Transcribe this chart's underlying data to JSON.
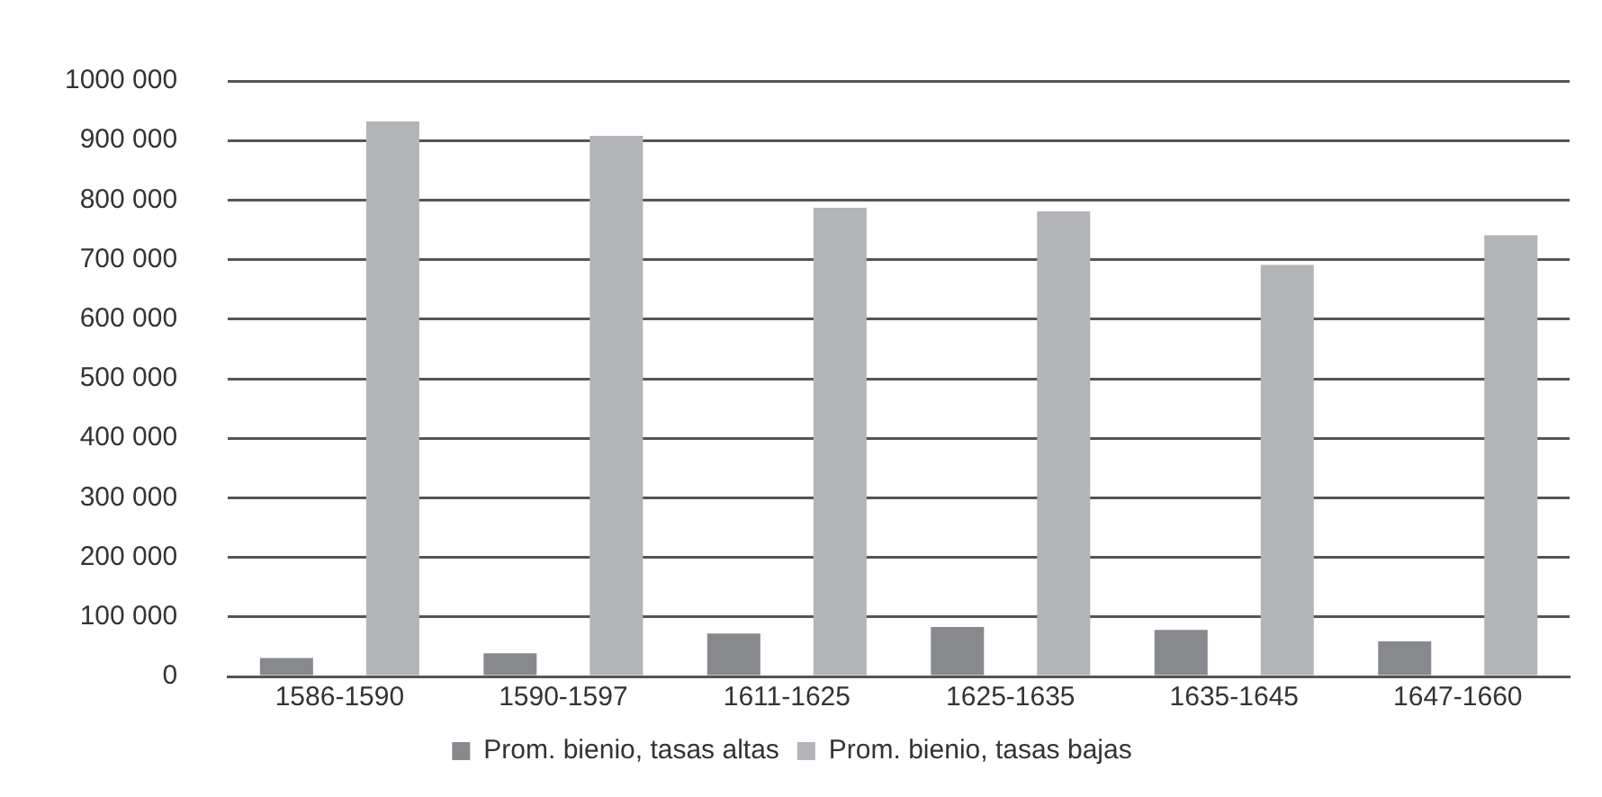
{
  "chart_data": {
    "type": "bar",
    "categories": [
      "1586-1590",
      "1590-1597",
      "1611-1625",
      "1625-1635",
      "1635-1645",
      "1647-1660"
    ],
    "series": [
      {
        "name": "Prom. bienio, tasas altas",
        "color": "#88898d",
        "values": [
          31000,
          39000,
          72000,
          83000,
          78000,
          59000
        ]
      },
      {
        "name": "Prom. bienio, tasas bajas",
        "color": "#b3b4b8",
        "values": [
          932000,
          908000,
          787000,
          781000,
          691000,
          741000
        ]
      }
    ],
    "ylim": [
      0,
      1000000
    ],
    "yticks": [
      {
        "value": 0,
        "label": "0"
      },
      {
        "value": 100000,
        "label": "100 000"
      },
      {
        "value": 200000,
        "label": "200 000"
      },
      {
        "value": 300000,
        "label": "300 000"
      },
      {
        "value": 400000,
        "label": "400 000"
      },
      {
        "value": 500000,
        "label": "500 000"
      },
      {
        "value": 600000,
        "label": "600 000"
      },
      {
        "value": 700000,
        "label": "700 000"
      },
      {
        "value": 800000,
        "label": "800 000"
      },
      {
        "value": 900000,
        "label": "900 000"
      },
      {
        "value": 1000000,
        "label": "1000 000"
      }
    ],
    "grid": "y",
    "legend": "bottom"
  }
}
